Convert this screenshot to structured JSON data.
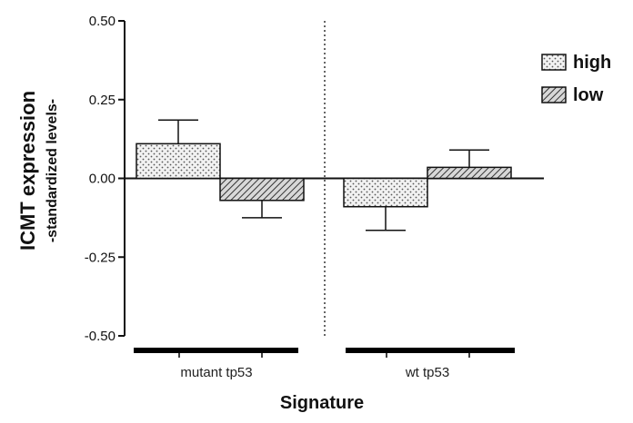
{
  "chart_data": {
    "type": "bar",
    "ylabel_main": "ICMT expression",
    "ylabel_sub": "-standardized levels-",
    "xlabel": "Signature",
    "ylim": [
      -0.5,
      0.5
    ],
    "yticks": [
      "0.50",
      "0.25",
      "0.00",
      "-0.25",
      "-0.50"
    ],
    "ytick_values": [
      0.5,
      0.25,
      0.0,
      -0.25,
      -0.5
    ],
    "categories": [
      "mutant tp53",
      "wt tp53"
    ],
    "series": [
      {
        "name": "high",
        "values": [
          0.11,
          -0.09
        ],
        "error": [
          0.075,
          0.075
        ],
        "pattern": "dots"
      },
      {
        "name": "low",
        "values": [
          -0.07,
          0.035
        ],
        "error": [
          0.055,
          0.055
        ],
        "pattern": "hatch"
      }
    ],
    "legend_position": "top-right",
    "group_separator": "dotted vertical line between groups"
  }
}
